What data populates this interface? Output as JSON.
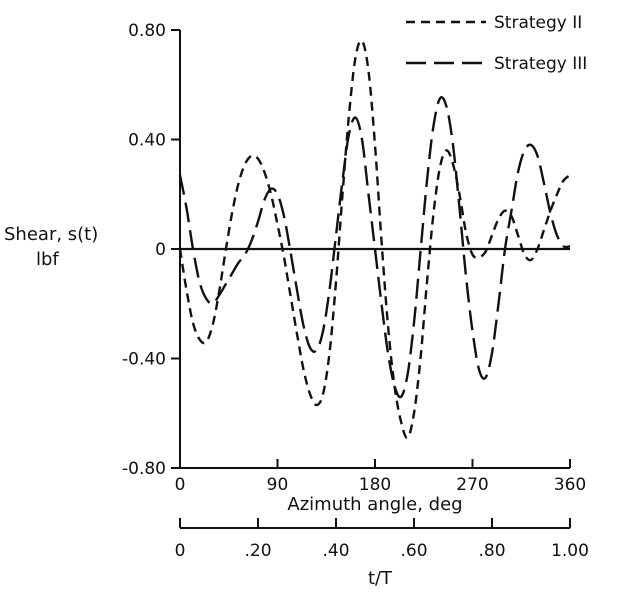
{
  "chart_data": {
    "type": "line",
    "title": "",
    "xlabel": "Azimuth angle, deg",
    "ylabel": "Shear, s(t)",
    "ylabel_unit": "lbf",
    "x2label": "t/T",
    "xlim": [
      0,
      360
    ],
    "ylim": [
      -0.8,
      0.8
    ],
    "x_ticks": [
      0,
      90,
      180,
      270,
      360
    ],
    "x_tick_labels": [
      "0",
      "90",
      "180",
      "270",
      "360"
    ],
    "x2_ticks": [
      0,
      0.2,
      0.4,
      0.6,
      0.8,
      1.0
    ],
    "x2_tick_labels": [
      "0",
      ".20",
      ".40",
      ".60",
      ".80",
      "1.00"
    ],
    "y_ticks": [
      0.8,
      0.4,
      0,
      -0.4,
      -0.8
    ],
    "y_tick_labels": [
      "0.80",
      "0.40",
      "0",
      "-0.40",
      "-0.80"
    ],
    "grid": false,
    "legend_position": "top-right",
    "series": [
      {
        "name": "Strategy II",
        "style": "short-dash",
        "x": [
          0,
          6,
          12,
          18,
          24,
          30,
          36,
          42,
          48,
          54,
          60,
          66,
          72,
          78,
          84,
          90,
          96,
          102,
          108,
          114,
          120,
          126,
          132,
          138,
          144,
          150,
          156,
          162,
          168,
          174,
          180,
          186,
          192,
          198,
          204,
          210,
          216,
          222,
          228,
          234,
          240,
          246,
          252,
          258,
          264,
          270,
          276,
          282,
          288,
          294,
          300,
          306,
          312,
          318,
          324,
          330,
          336,
          342,
          348,
          354,
          360
        ],
        "y": [
          0.0,
          -0.15,
          -0.27,
          -0.33,
          -0.34,
          -0.28,
          -0.16,
          -0.01,
          0.13,
          0.24,
          0.31,
          0.34,
          0.33,
          0.28,
          0.2,
          0.09,
          -0.03,
          -0.17,
          -0.31,
          -0.44,
          -0.53,
          -0.57,
          -0.53,
          -0.38,
          -0.12,
          0.2,
          0.49,
          0.7,
          0.76,
          0.65,
          0.38,
          0.03,
          -0.28,
          -0.5,
          -0.63,
          -0.69,
          -0.6,
          -0.4,
          -0.12,
          0.13,
          0.3,
          0.36,
          0.31,
          0.2,
          0.06,
          -0.02,
          -0.03,
          -0.01,
          0.05,
          0.11,
          0.14,
          0.12,
          0.05,
          -0.02,
          -0.04,
          0.0,
          0.07,
          0.14,
          0.2,
          0.25,
          0.27
        ]
      },
      {
        "name": "Strategy III",
        "style": "long-dash",
        "x": [
          0,
          6,
          12,
          18,
          24,
          30,
          36,
          42,
          48,
          54,
          60,
          66,
          72,
          78,
          84,
          90,
          96,
          102,
          108,
          114,
          120,
          126,
          132,
          138,
          144,
          150,
          156,
          162,
          168,
          174,
          180,
          186,
          192,
          198,
          204,
          210,
          216,
          222,
          228,
          234,
          240,
          246,
          252,
          258,
          264,
          270,
          276,
          282,
          288,
          294,
          300,
          306,
          312,
          318,
          324,
          330,
          336,
          342,
          348,
          354,
          360
        ],
        "y": [
          0.27,
          0.15,
          0.0,
          -0.12,
          -0.18,
          -0.2,
          -0.17,
          -0.13,
          -0.09,
          -0.05,
          -0.02,
          0.03,
          0.1,
          0.18,
          0.22,
          0.2,
          0.12,
          -0.01,
          -0.15,
          -0.28,
          -0.36,
          -0.37,
          -0.3,
          -0.15,
          0.05,
          0.25,
          0.42,
          0.48,
          0.4,
          0.2,
          0.0,
          -0.2,
          -0.38,
          -0.5,
          -0.54,
          -0.46,
          -0.27,
          -0.01,
          0.25,
          0.45,
          0.55,
          0.52,
          0.38,
          0.15,
          -0.1,
          -0.3,
          -0.44,
          -0.47,
          -0.38,
          -0.2,
          0.0,
          0.14,
          0.28,
          0.36,
          0.38,
          0.34,
          0.24,
          0.13,
          0.05,
          0.01,
          0.01
        ]
      }
    ]
  }
}
